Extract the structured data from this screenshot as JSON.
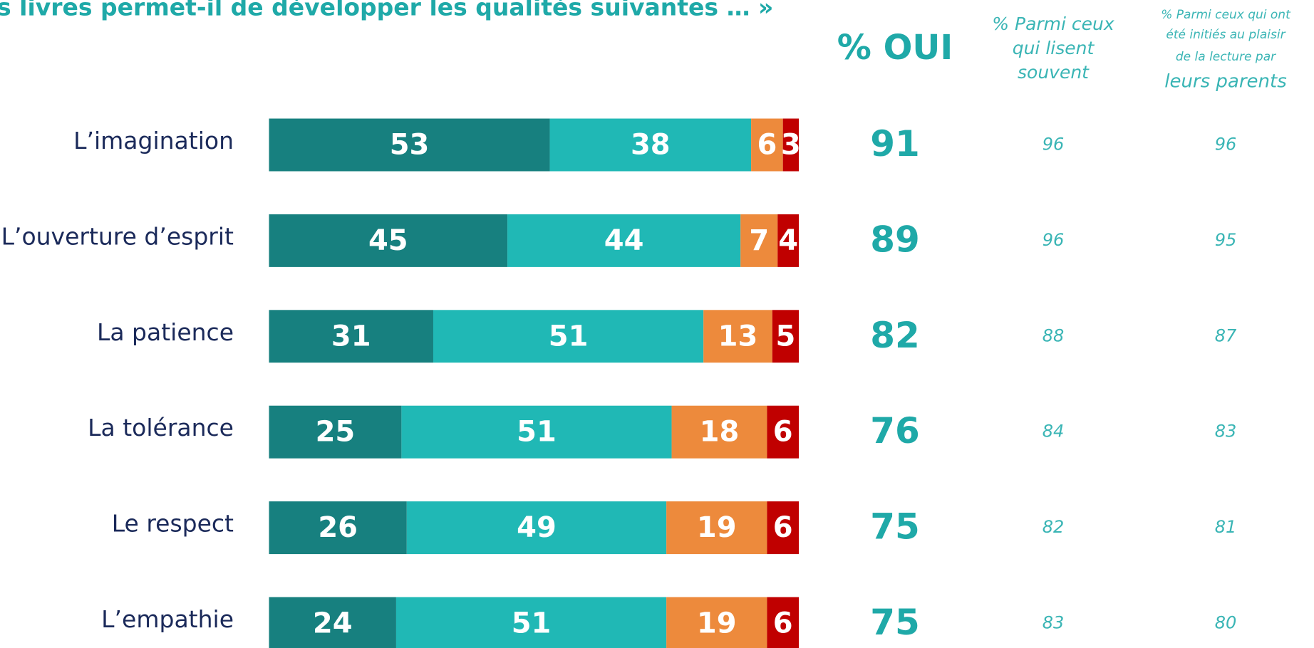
{
  "chart_data": {
    "type": "bar",
    "orientation": "horizontal",
    "stacked": true,
    "title": "s livres permet-il de développer les qualités suivantes … »",
    "categories": [
      "L’imagination",
      "L’ouverture d’esprit",
      "La patience",
      "La tolérance",
      "Le respect",
      "L’empathie"
    ],
    "xlim": [
      0,
      100
    ],
    "series": [
      {
        "color": "#17807f",
        "values": [
          53,
          45,
          31,
          25,
          26,
          24
        ]
      },
      {
        "color": "#20b8b5",
        "values": [
          38,
          44,
          51,
          51,
          49,
          51
        ]
      },
      {
        "color": "#ed8a3c",
        "values": [
          6,
          7,
          13,
          18,
          19,
          19
        ]
      },
      {
        "color": "#c00000",
        "values": [
          3,
          4,
          5,
          6,
          6,
          6
        ]
      }
    ],
    "columns": [
      {
        "header": [
          "% OUI"
        ],
        "values": [
          91,
          89,
          82,
          76,
          75,
          75
        ]
      },
      {
        "header": [
          "% Parmi ceux",
          "qui lisent",
          "souvent"
        ],
        "values": [
          96,
          96,
          88,
          84,
          82,
          83
        ]
      },
      {
        "header": [
          "% Parmi ceux qui ont",
          "été initiés au plaisir",
          "de la lecture par",
          "leurs parents"
        ],
        "values": [
          96,
          95,
          87,
          83,
          81,
          80
        ]
      }
    ]
  }
}
